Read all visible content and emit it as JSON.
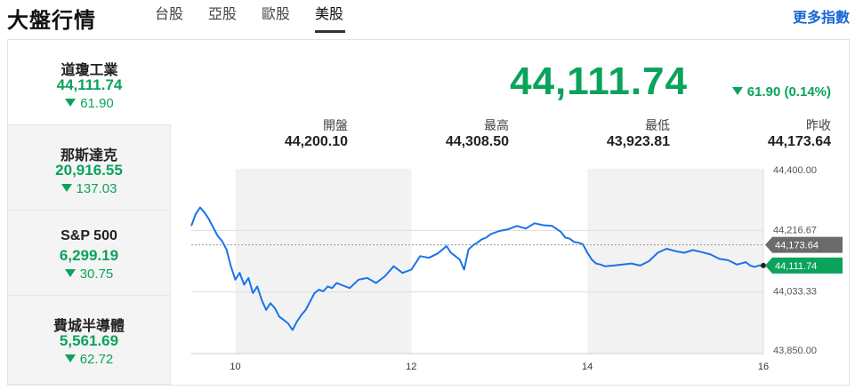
{
  "header": {
    "title": "大盤行情",
    "tabs": [
      {
        "label": "台股",
        "active": false
      },
      {
        "label": "亞股",
        "active": false
      },
      {
        "label": "歐股",
        "active": false
      },
      {
        "label": "美股",
        "active": true
      }
    ],
    "more_label": "更多指數"
  },
  "indices": [
    {
      "name": "道瓊工業",
      "price": "44,111.74",
      "change": "61.90",
      "direction": "down",
      "active": true
    },
    {
      "name": "那斯達克",
      "price": "20,916.55",
      "change": "137.03",
      "direction": "down",
      "active": false
    },
    {
      "name": "S&P 500",
      "price": "6,299.19",
      "change": "30.75",
      "direction": "down",
      "active": false
    },
    {
      "name": "費城半導體",
      "price": "5,561.69",
      "change": "62.72",
      "direction": "down",
      "active": false
    }
  ],
  "quote": {
    "price": "44,111.74",
    "change": "61.90 (0.14%)",
    "direction": "down",
    "stats": [
      {
        "label": "開盤",
        "value": "44,200.10"
      },
      {
        "label": "最高",
        "value": "44,308.50"
      },
      {
        "label": "最低",
        "value": "43,923.81"
      },
      {
        "label": "昨收",
        "value": "44,173.64"
      }
    ]
  },
  "colors": {
    "down": "#0aa35b",
    "line": "#1a73e8",
    "accent": "#1766d6",
    "prev_close_tag": "#6b6b6b"
  },
  "chart_data": {
    "type": "line",
    "x_ticks": [
      "10",
      "12",
      "14",
      "16"
    ],
    "y_ticks": [
      "44,400.00",
      "44,216.67",
      "44,033.33",
      "43,850.00"
    ],
    "ylim": [
      43850,
      44400
    ],
    "xlim": [
      9.5,
      16
    ],
    "prev_close": 44173.64,
    "prev_close_label": "44,173.64",
    "last_label": "44,111.74",
    "shaded_hours": [
      [
        10,
        12
      ],
      [
        14,
        16
      ]
    ],
    "series": [
      {
        "x": [
          9.5,
          9.55,
          9.6,
          9.65,
          9.7,
          9.75,
          9.8,
          9.85,
          9.9,
          9.95,
          10.0,
          10.05,
          10.1,
          10.15,
          10.2,
          10.25,
          10.3,
          10.35,
          10.4,
          10.45,
          10.5,
          10.55,
          10.6,
          10.65,
          10.7,
          10.75,
          10.8,
          10.85,
          10.9,
          10.95,
          11.0,
          11.05,
          11.1,
          11.15,
          11.2,
          11.3,
          11.4,
          11.5,
          11.6,
          11.7,
          11.8,
          11.9,
          12.0,
          12.05,
          12.1,
          12.2,
          12.3,
          12.4,
          12.45,
          12.5,
          12.55,
          12.6,
          12.65,
          12.7,
          12.75,
          12.8,
          12.85,
          12.9,
          13.0,
          13.1,
          13.2,
          13.3,
          13.4,
          13.5,
          13.6,
          13.7,
          13.75,
          13.8,
          13.85,
          13.9,
          13.95,
          14.0,
          14.05,
          14.1,
          14.15,
          14.2,
          14.3,
          14.4,
          14.5,
          14.6,
          14.7,
          14.8,
          14.9,
          15.0,
          15.1,
          15.2,
          15.3,
          15.4,
          15.5,
          15.6,
          15.7,
          15.8,
          15.85,
          15.9,
          15.95,
          16.0
        ],
        "y": [
          44230,
          44265,
          44285,
          44270,
          44250,
          44225,
          44200,
          44185,
          44160,
          44110,
          44070,
          44090,
          44055,
          44075,
          44030,
          44050,
          44010,
          43980,
          44000,
          43985,
          43960,
          43950,
          43940,
          43920,
          43945,
          43965,
          43980,
          44005,
          44030,
          44040,
          44035,
          44050,
          44045,
          44060,
          44055,
          44045,
          44070,
          44075,
          44060,
          44080,
          44110,
          44090,
          44100,
          44120,
          44140,
          44135,
          44148,
          44170,
          44150,
          44140,
          44130,
          44100,
          44160,
          44172,
          44180,
          44190,
          44195,
          44205,
          44215,
          44220,
          44230,
          44222,
          44238,
          44232,
          44230,
          44212,
          44195,
          44192,
          44182,
          44180,
          44175,
          44150,
          44130,
          44118,
          44115,
          44110,
          44112,
          44115,
          44118,
          44112,
          44125,
          44150,
          44162,
          44155,
          44150,
          44158,
          44152,
          44145,
          44132,
          44128,
          44115,
          44122,
          44112,
          44108,
          44112,
          44112
        ]
      }
    ]
  }
}
